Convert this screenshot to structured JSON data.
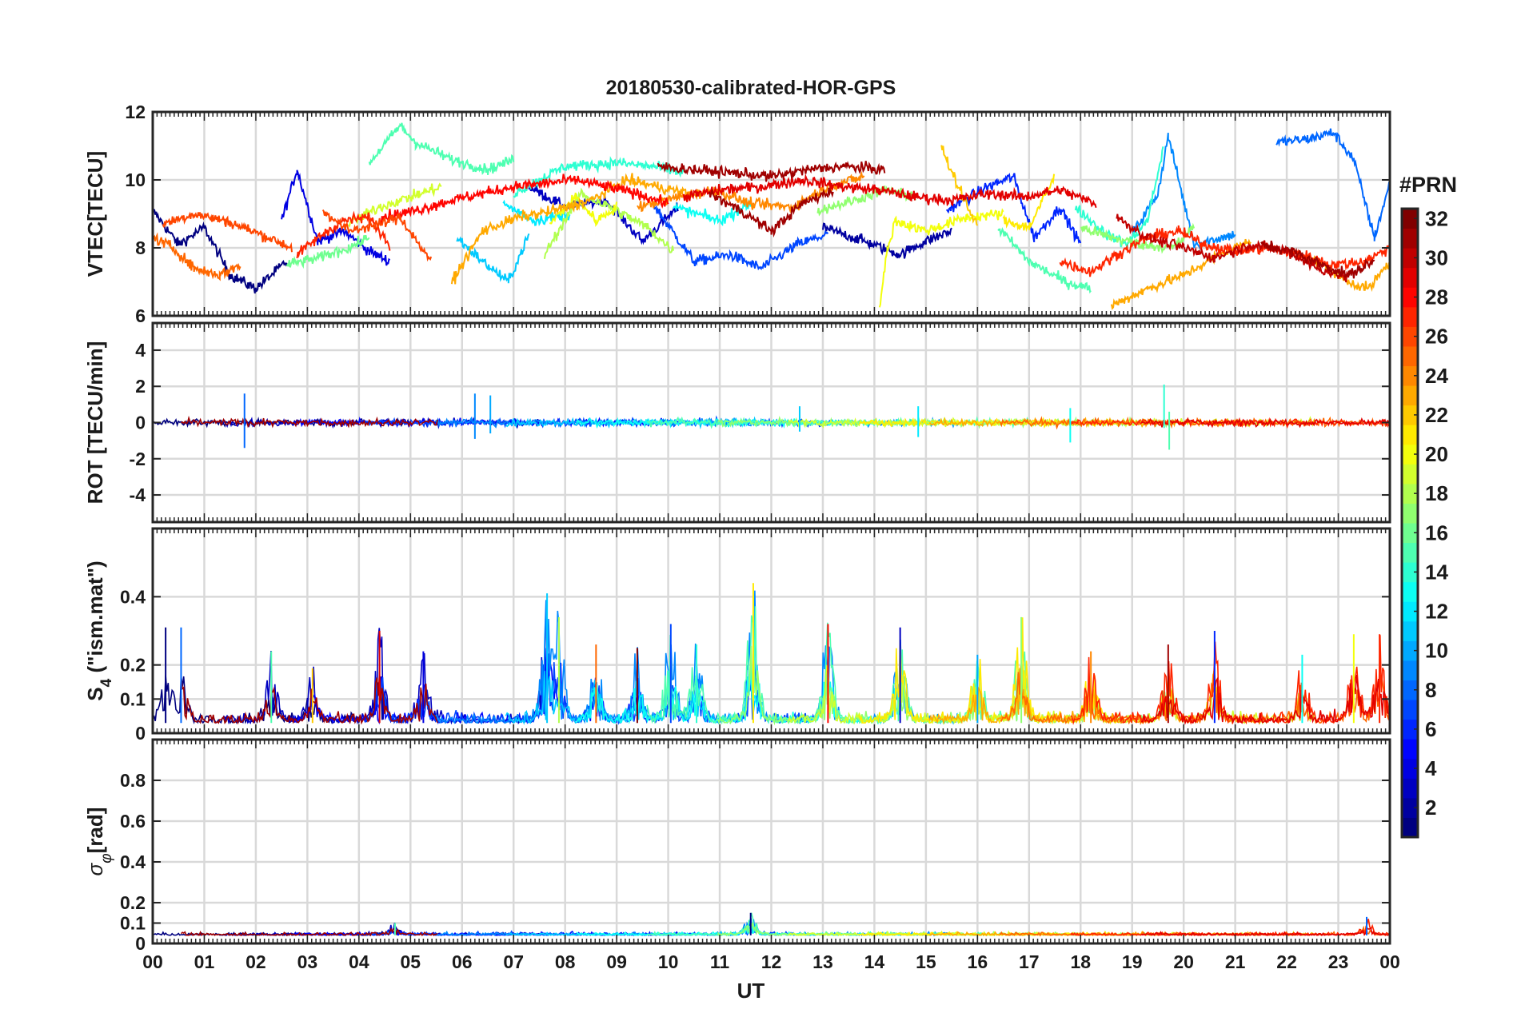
{
  "chart_data": {
    "title": "20180530-calibrated-HOR-GPS",
    "type": "line",
    "x": {
      "label": "UT",
      "range": [
        0,
        24
      ],
      "tick_labels": [
        "00",
        "01",
        "02",
        "03",
        "04",
        "05",
        "06",
        "07",
        "08",
        "09",
        "10",
        "11",
        "12",
        "13",
        "14",
        "15",
        "16",
        "17",
        "18",
        "19",
        "20",
        "21",
        "22",
        "23",
        "00"
      ]
    },
    "grid": true,
    "colormap": "jet",
    "colorbar": {
      "title": "#PRN",
      "range": [
        1,
        32
      ],
      "levels": 32,
      "tick_values": [
        2,
        4,
        6,
        8,
        10,
        12,
        14,
        16,
        18,
        20,
        22,
        24,
        26,
        28,
        30,
        32
      ],
      "placement": "right"
    },
    "panels": [
      {
        "id": "vtec",
        "ylabel": "VTEC[TECU]",
        "ylim": [
          6,
          12
        ],
        "yticks": [
          6,
          8,
          10,
          12
        ],
        "baseline": 8.6,
        "noise": 0.25,
        "drift": 1.1
      },
      {
        "id": "rot",
        "ylabel": "ROT [TECU/min]",
        "ylim": [
          -5.5,
          5.5
        ],
        "yticks": [
          -4,
          -2,
          0,
          2,
          4
        ],
        "baseline": 0,
        "noise": 0.18,
        "drift": 0.05,
        "spikes": [
          {
            "x": 1.78,
            "min": -1.4,
            "max": 1.6
          },
          {
            "x": 6.25,
            "min": -0.9,
            "max": 1.6
          },
          {
            "x": 6.55,
            "min": -0.6,
            "max": 1.5
          },
          {
            "x": 12.55,
            "min": -0.5,
            "max": 0.9
          },
          {
            "x": 14.85,
            "min": -0.8,
            "max": 0.9
          },
          {
            "x": 17.8,
            "min": -1.1,
            "max": 0.8
          },
          {
            "x": 19.62,
            "min": -0.3,
            "max": 2.1
          },
          {
            "x": 19.72,
            "min": -1.5,
            "max": 0.6
          }
        ]
      },
      {
        "id": "s4",
        "ylabel_main": "S",
        "ylabel_sub": "4",
        "ylabel_rest": " (\"ism.mat\")",
        "ylim": [
          0,
          0.6
        ],
        "yticks": [
          0,
          0.1,
          0.2,
          0.4
        ],
        "baseline": 0.03,
        "noise": 0.025,
        "drift": 0,
        "bursts": [
          {
            "x": 0.25,
            "peak": 0.31
          },
          {
            "x": 0.55,
            "peak": 0.31
          },
          {
            "x": 2.3,
            "peak": 0.24
          },
          {
            "x": 3.1,
            "peak": 0.19
          },
          {
            "x": 4.4,
            "peak": 0.3
          },
          {
            "x": 5.25,
            "peak": 0.24
          },
          {
            "x": 7.65,
            "peak": 0.41
          },
          {
            "x": 7.88,
            "peak": 0.34
          },
          {
            "x": 8.6,
            "peak": 0.26
          },
          {
            "x": 9.4,
            "peak": 0.25
          },
          {
            "x": 10.05,
            "peak": 0.32
          },
          {
            "x": 10.55,
            "peak": 0.26
          },
          {
            "x": 11.65,
            "peak": 0.44
          },
          {
            "x": 13.1,
            "peak": 0.32
          },
          {
            "x": 14.5,
            "peak": 0.31
          },
          {
            "x": 16.0,
            "peak": 0.23
          },
          {
            "x": 16.85,
            "peak": 0.34
          },
          {
            "x": 18.2,
            "peak": 0.24
          },
          {
            "x": 19.7,
            "peak": 0.26
          },
          {
            "x": 20.6,
            "peak": 0.3
          },
          {
            "x": 22.3,
            "peak": 0.23
          },
          {
            "x": 23.3,
            "peak": 0.29
          },
          {
            "x": 23.8,
            "peak": 0.29
          }
        ]
      },
      {
        "id": "sigma",
        "ylabel_main": "σ",
        "ylabel_sub": "φ",
        "ylabel_rest": "[rad]",
        "ylim": [
          0,
          1
        ],
        "yticks": [
          0,
          0.1,
          0.2,
          0.4,
          0.6,
          0.8
        ],
        "baseline": 0.04,
        "noise": 0.012,
        "drift": 0,
        "bursts": [
          {
            "x": 11.6,
            "peak": 0.15
          },
          {
            "x": 23.55,
            "peak": 0.13
          },
          {
            "x": 4.7,
            "peak": 0.1
          }
        ]
      }
    ],
    "vtec_segments": [
      {
        "prn": 1,
        "x": [
          0.0,
          0.5,
          1.0,
          1.5,
          2.0,
          2.6
        ],
        "y": [
          9.1,
          8.1,
          8.6,
          7.2,
          6.8,
          7.6
        ]
      },
      {
        "prn": 4,
        "x": [
          2.5,
          2.8,
          3.2,
          3.7,
          4.2,
          4.6
        ],
        "y": [
          8.8,
          10.3,
          8.2,
          8.5,
          7.9,
          7.6
        ]
      },
      {
        "prn": 3,
        "x": [
          7.3,
          8.0,
          8.8,
          9.5,
          10.2
        ],
        "y": [
          9.8,
          9.2,
          9.4,
          8.2,
          9.2
        ]
      },
      {
        "prn": 7,
        "x": [
          9.7,
          10.5,
          11.2,
          11.8,
          12.5,
          13.1
        ],
        "y": [
          9.3,
          7.6,
          7.8,
          7.4,
          8.1,
          8.4
        ]
      },
      {
        "prn": 2,
        "x": [
          13.0,
          13.8,
          14.5,
          15.0,
          15.5
        ],
        "y": [
          8.6,
          8.2,
          7.8,
          8.2,
          8.5
        ]
      },
      {
        "prn": 6,
        "x": [
          15.4,
          16.2,
          16.7,
          17.1,
          17.6,
          18.0
        ],
        "y": [
          9.1,
          9.8,
          10.1,
          8.3,
          9.2,
          8.1
        ]
      },
      {
        "prn": 9,
        "x": [
          19.0,
          19.5,
          19.7,
          20.2,
          21.0
        ],
        "y": [
          8.4,
          9.6,
          11.3,
          8.1,
          8.4
        ]
      },
      {
        "prn": 8,
        "x": [
          21.8,
          22.4,
          22.9,
          23.3,
          23.7,
          24.0
        ],
        "y": [
          11.1,
          11.2,
          11.4,
          10.6,
          8.3,
          9.9
        ]
      },
      {
        "prn": 11,
        "x": [
          5.9,
          6.4,
          6.9,
          7.3
        ],
        "y": [
          8.3,
          7.6,
          7.0,
          8.4
        ]
      },
      {
        "prn": 12,
        "x": [
          6.8,
          7.4,
          8.1
        ],
        "y": [
          9.3,
          8.8,
          9.0
        ]
      },
      {
        "prn": 13,
        "x": [
          10.1,
          11.0,
          11.6
        ],
        "y": [
          9.2,
          8.8,
          9.3
        ]
      },
      {
        "prn": 15,
        "x": [
          4.2,
          4.8,
          5.1,
          5.8,
          6.5,
          7.0
        ],
        "y": [
          10.5,
          11.6,
          11.1,
          10.6,
          10.3,
          10.6
        ]
      },
      {
        "prn": 14,
        "x": [
          7.0,
          8.0,
          9.0,
          9.7,
          10.3
        ],
        "y": [
          9.6,
          10.4,
          10.5,
          10.4,
          10.2
        ]
      },
      {
        "prn": 16,
        "x": [
          2.6,
          3.2,
          3.8,
          4.2
        ],
        "y": [
          7.5,
          7.7,
          8.0,
          8.3
        ]
      },
      {
        "prn": 15,
        "x": [
          16.4,
          17.0,
          17.7,
          18.2
        ],
        "y": [
          8.6,
          7.6,
          7.0,
          6.8
        ]
      },
      {
        "prn": 14,
        "x": [
          17.9,
          18.5,
          18.9,
          19.3,
          19.6
        ],
        "y": [
          9.2,
          8.4,
          8.1,
          8.8,
          10.9
        ]
      },
      {
        "prn": 17,
        "x": [
          18.0,
          18.6,
          19.2,
          19.8,
          20.2
        ],
        "y": [
          8.6,
          8.3,
          8.1,
          8.0,
          8.6
        ]
      },
      {
        "prn": 18,
        "x": [
          7.6,
          8.3,
          9.0,
          9.6,
          10.1
        ],
        "y": [
          7.8,
          9.6,
          9.1,
          8.6,
          7.9
        ]
      },
      {
        "prn": 17,
        "x": [
          12.9,
          13.6,
          14.2,
          14.8
        ],
        "y": [
          9.1,
          9.4,
          9.7,
          9.5
        ]
      },
      {
        "prn": 19,
        "x": [
          3.8,
          4.4,
          5.0,
          5.6
        ],
        "y": [
          8.7,
          9.2,
          9.5,
          9.8
        ]
      },
      {
        "prn": 20,
        "x": [
          7.7,
          8.2,
          8.6,
          9.0
        ],
        "y": [
          8.7,
          9.5,
          8.8,
          9.2
        ]
      },
      {
        "prn": 20,
        "x": [
          14.1,
          14.25,
          14.4,
          15.0,
          15.8,
          16.5
        ],
        "y": [
          6.3,
          7.9,
          8.8,
          8.5,
          8.9,
          9.0
        ]
      },
      {
        "prn": 21,
        "x": [
          16.5,
          17.0,
          17.5
        ],
        "y": [
          8.8,
          8.6,
          10.1
        ]
      },
      {
        "prn": 22,
        "x": [
          15.3,
          15.6,
          16.0
        ],
        "y": [
          11.0,
          9.9,
          8.6
        ]
      },
      {
        "prn": 23,
        "x": [
          5.8,
          6.4,
          7.1,
          7.8,
          8.5,
          9.2,
          9.8,
          10.4
        ],
        "y": [
          7.0,
          8.5,
          8.9,
          9.1,
          9.4,
          10.0,
          9.8,
          9.6
        ]
      },
      {
        "prn": 24,
        "x": [
          9.4,
          10.2,
          10.9,
          11.6,
          12.4,
          13.1,
          13.8
        ],
        "y": [
          9.2,
          9.5,
          9.7,
          9.3,
          9.2,
          9.8,
          10.1
        ]
      },
      {
        "prn": 23,
        "x": [
          18.6,
          19.3,
          20.0,
          20.7,
          21.3
        ],
        "y": [
          6.3,
          6.8,
          7.2,
          7.8,
          8.2
        ]
      },
      {
        "prn": 23,
        "x": [
          22.3,
          22.8,
          23.2,
          23.6,
          24.0
        ],
        "y": [
          7.8,
          7.4,
          7.0,
          6.8,
          7.6
        ]
      },
      {
        "prn": 25,
        "x": [
          0.0,
          0.4,
          0.8,
          1.3,
          1.7
        ],
        "y": [
          8.3,
          8.0,
          7.4,
          7.2,
          7.5
        ]
      },
      {
        "prn": 26,
        "x": [
          0.2,
          0.8,
          1.4,
          2.1,
          2.7
        ],
        "y": [
          8.7,
          9.0,
          8.8,
          8.4,
          8.0
        ]
      },
      {
        "prn": 27,
        "x": [
          2.8,
          3.3,
          3.7,
          4.2,
          4.6
        ],
        "y": [
          7.8,
          8.4,
          8.8,
          8.9,
          8.1
        ]
      },
      {
        "prn": 28,
        "x": [
          4.4,
          5.1,
          5.8,
          6.4,
          7.0,
          7.6,
          8.2,
          8.8,
          9.4,
          10.0
        ],
        "y": [
          8.9,
          9.1,
          9.4,
          9.6,
          9.8,
          9.9,
          10.0,
          9.8,
          9.6,
          9.3
        ]
      },
      {
        "prn": 29,
        "x": [
          10.3,
          11.0,
          11.8,
          12.6,
          13.4,
          14.1,
          14.8,
          15.5,
          16.2,
          16.9,
          17.6,
          18.3
        ],
        "y": [
          9.5,
          9.7,
          9.8,
          10.0,
          9.8,
          9.7,
          9.5,
          9.4,
          9.6,
          9.5,
          9.7,
          9.3
        ]
      },
      {
        "prn": 27,
        "x": [
          17.6,
          18.2,
          18.7,
          19.3,
          19.9,
          20.4,
          21.0,
          21.6,
          22.3,
          22.9,
          23.5,
          24.0
        ],
        "y": [
          7.6,
          7.3,
          7.8,
          8.3,
          8.5,
          8.1,
          7.9,
          8.0,
          7.8,
          7.5,
          7.6,
          8.0
        ]
      },
      {
        "prn": 26,
        "x": [
          3.3,
          3.8,
          4.4,
          4.8,
          5.4
        ],
        "y": [
          9.1,
          8.5,
          8.7,
          8.9,
          7.6
        ]
      },
      {
        "prn": 31,
        "x": [
          9.8,
          10.5,
          11.3,
          12.0,
          12.7,
          13.4,
          14.2
        ],
        "y": [
          10.4,
          10.3,
          10.2,
          10.1,
          10.3,
          10.4,
          10.3
        ]
      },
      {
        "prn": 31,
        "x": [
          10.8,
          11.4,
          12.0,
          12.6,
          13.2
        ],
        "y": [
          9.6,
          9.1,
          8.5,
          9.3,
          9.7
        ]
      },
      {
        "prn": 30,
        "x": [
          18.7,
          19.3,
          20.0,
          20.6,
          21.3,
          22.0,
          22.6,
          23.2
        ],
        "y": [
          8.9,
          8.3,
          8.0,
          7.7,
          8.1,
          7.9,
          7.4,
          7.1
        ]
      },
      {
        "prn": 31,
        "x": [
          21.5,
          22.1,
          22.7,
          23.2,
          23.7
        ],
        "y": [
          8.1,
          7.9,
          7.5,
          7.2,
          7.6
        ]
      }
    ]
  }
}
